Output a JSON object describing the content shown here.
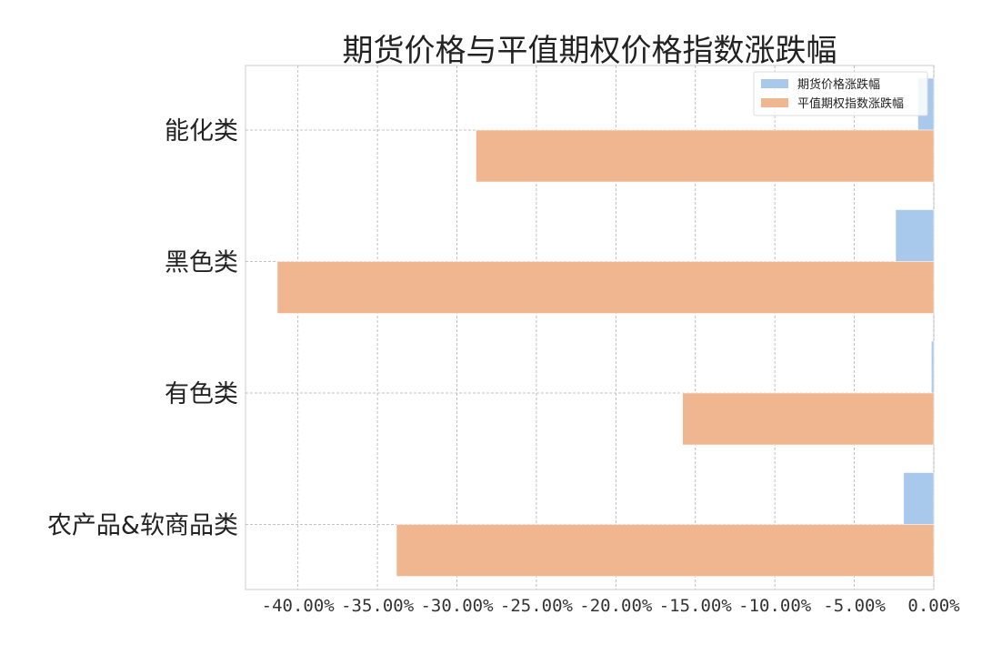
{
  "chart_data": {
    "type": "bar",
    "orientation": "horizontal",
    "title": "期货价格与平值期权价格指数涨跌幅",
    "categories": [
      "能化类",
      "黑色类",
      "有色类",
      "农产品&软商品类"
    ],
    "series": [
      {
        "name": "期货价格涨跌幅",
        "color": "#a8c8ec",
        "values": [
          -1.0,
          -2.4,
          -0.15,
          -1.9
        ]
      },
      {
        "name": "平值期权指数涨跌幅",
        "color": "#f0b690",
        "values": [
          -28.8,
          -41.3,
          -15.8,
          -33.8
        ]
      }
    ],
    "xlim": [
      -43.3,
      0
    ],
    "xticks": [
      -40,
      -35,
      -30,
      -25,
      -20,
      -15,
      -10,
      -5,
      0
    ],
    "xtick_labels": [
      "-40.00%",
      "-35.00%",
      "-30.00%",
      "-25.00%",
      "-20.00%",
      "-15.00%",
      "-10.00%",
      "-5.00%",
      "0.00%"
    ],
    "xlabel": "",
    "ylabel": "",
    "grid": true,
    "legend_position": "top-right"
  }
}
